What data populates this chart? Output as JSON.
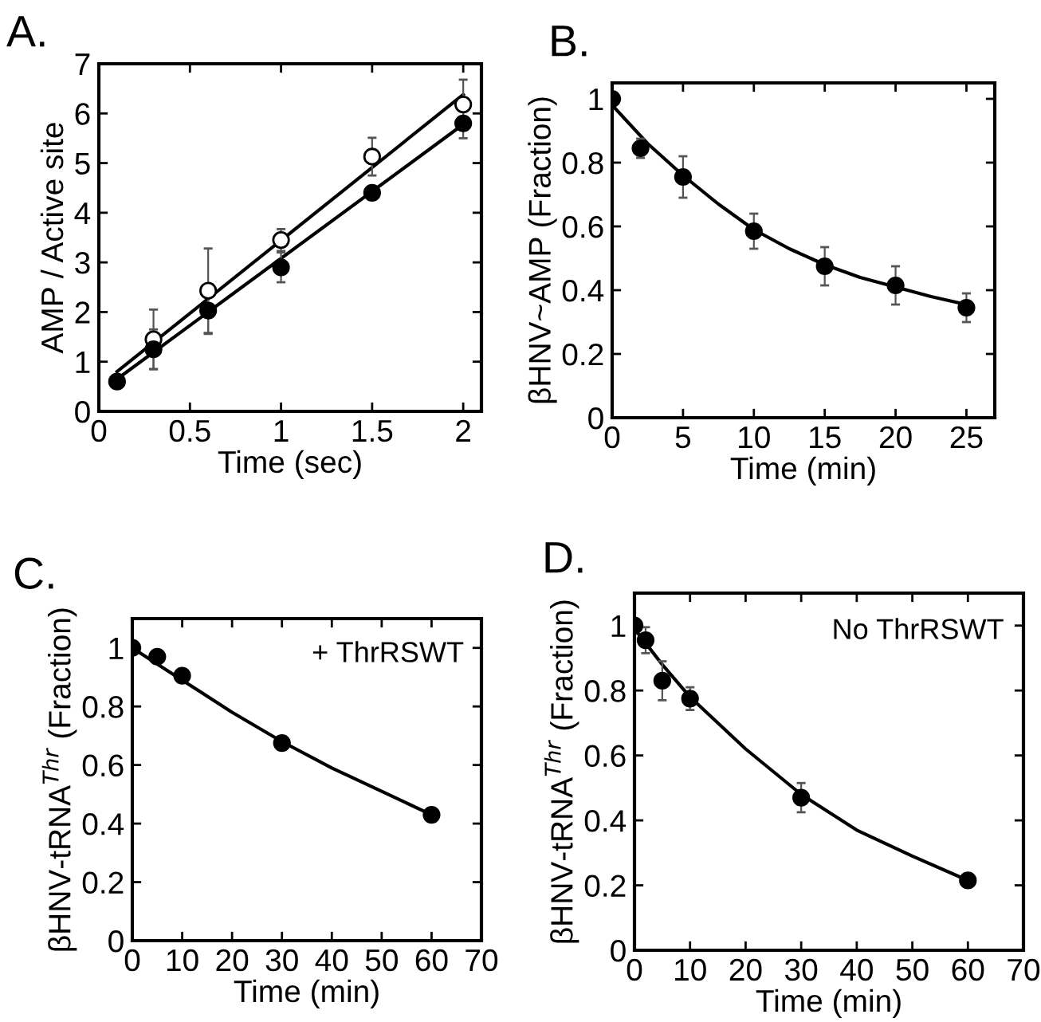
{
  "chart_data": [
    {
      "type": "scatter",
      "title": "A.",
      "xlabel": "Time (sec)",
      "ylabel": "AMP / Active site",
      "xlim": [
        0,
        2.1
      ],
      "ylim": [
        0,
        7
      ],
      "xticks": [
        0,
        0.5,
        1,
        1.5,
        2
      ],
      "yticks": [
        0,
        1,
        2,
        3,
        4,
        5,
        6,
        7
      ],
      "grid": false,
      "legend": false,
      "series": [
        {
          "type": "line",
          "color": "#000000",
          "x": [
            0.1,
            2
          ],
          "values": [
            0.8,
            6.38
          ]
        },
        {
          "type": "line",
          "color": "#000000",
          "x": [
            0.1,
            2
          ],
          "values": [
            0.65,
            5.78
          ]
        },
        {
          "marker": "circle",
          "color": "#ffffff",
          "x": [
            0.3,
            0.6,
            1,
            1.5,
            2
          ],
          "values": [
            1.45,
            2.43,
            3.45,
            5.13,
            6.18
          ],
          "errors": [
            0.6,
            0.85,
            0.22,
            0.38,
            0.5
          ]
        },
        {
          "marker": "circle",
          "color": "#000000",
          "x": [
            0.1,
            0.3,
            0.6,
            1,
            1.5,
            2
          ],
          "values": [
            0.6,
            1.25,
            2.03,
            2.9,
            4.4,
            5.8
          ],
          "errors": [
            null,
            0.4,
            0.47,
            0.3,
            null,
            0.3
          ]
        }
      ]
    },
    {
      "type": "scatter",
      "title": "B.",
      "xlabel": "Time (min)",
      "ylabel": "βHNV~AMP (Fraction)",
      "xlim": [
        0,
        27
      ],
      "ylim": [
        0,
        1.05
      ],
      "xticks": [
        0,
        5,
        10,
        15,
        20,
        25
      ],
      "yticks": [
        0,
        0.2,
        0.4,
        0.6,
        0.8,
        1
      ],
      "grid": false,
      "legend": false,
      "series": [
        {
          "type": "line",
          "color": "#000000",
          "x": [
            0,
            2.5,
            5,
            7.5,
            10,
            12.5,
            15,
            17.5,
            20,
            22.5,
            25
          ],
          "values": [
            0.98,
            0.86,
            0.76,
            0.67,
            0.59,
            0.53,
            0.48,
            0.44,
            0.41,
            0.38,
            0.355
          ]
        },
        {
          "marker": "circle",
          "color": "#000000",
          "x": [
            0,
            2,
            5,
            10,
            15,
            20,
            25
          ],
          "values": [
            1,
            0.845,
            0.755,
            0.585,
            0.475,
            0.415,
            0.345
          ],
          "errors": [
            null,
            0.03,
            0.065,
            0.055,
            0.06,
            0.06,
            0.045
          ]
        }
      ]
    },
    {
      "type": "scatter",
      "title": "C.",
      "xlabel": "Time (min)",
      "ylabel": "βHNV-tRNA$^{Thr}$ (Fraction)",
      "xlim": [
        0,
        70
      ],
      "ylim": [
        0,
        1.1
      ],
      "xticks": [
        0,
        10,
        20,
        30,
        40,
        50,
        60,
        70
      ],
      "yticks": [
        0,
        0.2,
        0.4,
        0.6,
        0.8,
        1
      ],
      "grid": false,
      "legend": false,
      "annotations": [
        "+ ThrRSWT"
      ],
      "series": [
        {
          "type": "line",
          "color": "#000000",
          "x": [
            0,
            10,
            20,
            30,
            40,
            50,
            60
          ],
          "values": [
            1.0,
            0.89,
            0.78,
            0.68,
            0.59,
            0.51,
            0.43
          ]
        },
        {
          "marker": "circle",
          "color": "#000000",
          "x": [
            0,
            5,
            10,
            30,
            60
          ],
          "values": [
            1,
            0.97,
            0.905,
            0.675,
            0.43
          ]
        }
      ]
    },
    {
      "type": "scatter",
      "title": "D.",
      "xlabel": "Time (min)",
      "ylabel": "βHNV-tRNA$^{Thr}$ (Fraction)",
      "xlim": [
        0,
        70
      ],
      "ylim": [
        0,
        1.1
      ],
      "xticks": [
        0,
        10,
        20,
        30,
        40,
        50,
        60,
        70
      ],
      "yticks": [
        0,
        0.2,
        0.4,
        0.6,
        0.8,
        1
      ],
      "grid": false,
      "legend": false,
      "annotations": [
        "No ThrRSWT"
      ],
      "series": [
        {
          "type": "line",
          "color": "#000000",
          "x": [
            0,
            5,
            10,
            20,
            30,
            40,
            50,
            60
          ],
          "values": [
            0.99,
            0.88,
            0.78,
            0.62,
            0.48,
            0.37,
            0.29,
            0.215
          ]
        },
        {
          "marker": "circle",
          "color": "#000000",
          "x": [
            0,
            2,
            5,
            10,
            30,
            60
          ],
          "values": [
            1,
            0.955,
            0.83,
            0.775,
            0.47,
            0.215
          ],
          "errors": [
            null,
            0.04,
            0.06,
            0.035,
            0.045,
            null
          ]
        }
      ]
    }
  ]
}
